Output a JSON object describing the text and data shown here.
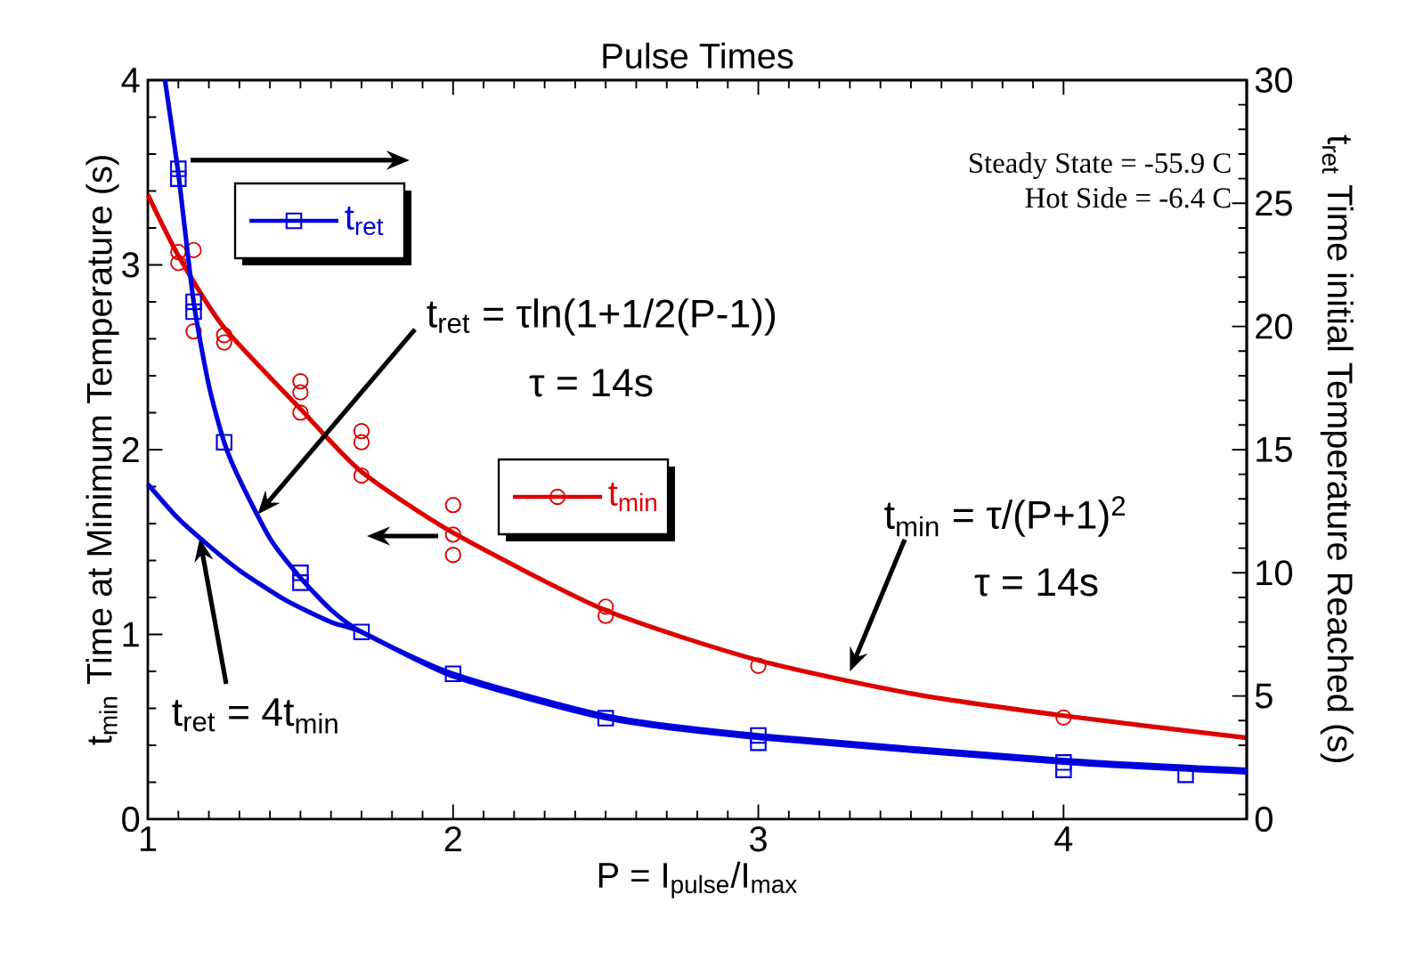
{
  "chart_data": {
    "type": "scatter",
    "title": "Pulse Times",
    "xlabel": "P =  I$_{pulse}$/I$_{max}$",
    "ylabel": "t$_{min}$ Time at Minimum Temperature (s)",
    "y2label": "t$_{ret}$ Time initial Temperature Reached (s)",
    "xlim": [
      1,
      4.6
    ],
    "xticks": [
      1,
      2,
      3,
      4
    ],
    "ylim": [
      0,
      4
    ],
    "yticks": [
      0,
      1,
      2,
      3,
      4
    ],
    "y2lim": [
      0,
      30
    ],
    "y2ticks": [
      0,
      5,
      10,
      15,
      20,
      25,
      30
    ],
    "legend": "top left",
    "grid": false,
    "series": [
      {
        "name": "t$_{ret}$",
        "axis": "y2",
        "color": "#0000dd",
        "marker": "square",
        "x": [
          1.1,
          1.1,
          1.15,
          1.15,
          1.25,
          1.5,
          1.5,
          1.7,
          2.0,
          2.5,
          3.0,
          3.0,
          4.0,
          4.0,
          4.4
        ],
        "values": [
          26.4,
          26.0,
          21.0,
          20.6,
          15.3,
          10.0,
          9.6,
          7.6,
          5.9,
          4.1,
          3.4,
          3.1,
          2.3,
          2.0,
          1.8
        ]
      },
      {
        "name": "t$_{min}$",
        "color": "#dd0000",
        "marker": "circle",
        "x": [
          1.1,
          1.1,
          1.15,
          1.15,
          1.25,
          1.25,
          1.5,
          1.5,
          1.5,
          1.7,
          1.7,
          1.7,
          2.0,
          2.0,
          2.0,
          2.5,
          2.5,
          3.0,
          4.0
        ],
        "values": [
          3.07,
          3.01,
          3.08,
          2.64,
          2.62,
          2.58,
          2.37,
          2.31,
          2.2,
          2.1,
          2.04,
          1.86,
          1.7,
          1.54,
          1.43,
          1.15,
          1.1,
          0.83,
          0.55
        ]
      },
      {
        "type": "line",
        "axis": "y2",
        "color": "#0000dd",
        "marker": "none",
        "x": [
          1.056,
          1.1,
          1.15,
          1.2,
          1.25,
          1.3,
          1.4,
          1.5,
          1.6,
          1.7,
          2.0,
          2.5,
          3.0,
          4.0,
          4.6
        ],
        "values": [
          30,
          26.2,
          21.0,
          17.6,
          15.3,
          13.8,
          11.4,
          9.8,
          8.5,
          7.6,
          5.9,
          4.2,
          3.4,
          2.4,
          2.0
        ]
      },
      {
        "type": "line",
        "axis": "y2",
        "color": "#0000dd",
        "marker": "none",
        "x": [
          1.0,
          1.1,
          1.2,
          1.3,
          1.45,
          1.6,
          1.7,
          2.0,
          2.5,
          3.0,
          4.0,
          4.6
        ],
        "values": [
          13.6,
          12.2,
          11.1,
          10.1,
          8.9,
          8.0,
          7.6,
          5.8,
          4.1,
          3.3,
          2.3,
          1.9
        ]
      },
      {
        "type": "line",
        "color": "#dd0000",
        "marker": "none",
        "x": [
          1.0,
          1.1,
          1.25,
          1.5,
          1.7,
          2.0,
          2.5,
          3.0,
          3.5,
          4.0,
          4.6
        ],
        "values": [
          3.38,
          3.05,
          2.66,
          2.22,
          1.88,
          1.55,
          1.13,
          0.86,
          0.68,
          0.56,
          0.44
        ]
      }
    ],
    "annotations": [
      "Steady State = -55.9 C",
      "Hot Side = -6.4 C",
      {
        "text": "t$_{ret}$ = τln(1+1/2(P-1))",
        "x": 1.36,
        "y": 1.65
      },
      "τ = 14s",
      {
        "text": "t$_{min}$ = τ/(P+1)$^{2}$",
        "x": 3.3,
        "y": 0.8
      },
      "τ = 14s",
      {
        "text": "t$_{ret}$ = 4t$_{min}$",
        "x": 1.17,
        "y": 1.52
      }
    ]
  }
}
